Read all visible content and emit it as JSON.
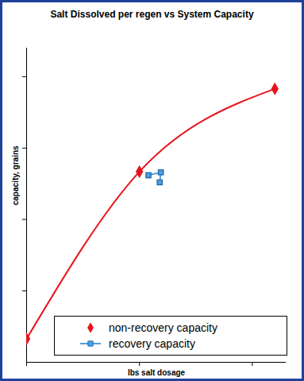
{
  "chart_data": {
    "type": "line",
    "title": "Salt Dissolved per regen vs System Capacity",
    "x_label": "lbs salt dosage",
    "y_label": "capacity, grains",
    "xlim": [
      0,
      2.3
    ],
    "ylim": [
      0,
      4.4
    ],
    "xticks": [
      0,
      1,
      2
    ],
    "yticks": [
      1,
      2,
      3,
      4
    ],
    "tick_labels": false,
    "grid": false,
    "legend": "lower right",
    "series": [
      {
        "name": "non-recovery capacity",
        "color": "#e8141c",
        "marker": "diamond",
        "line_style": "smooth",
        "x": [
          0,
          1,
          2.2
        ],
        "values": [
          0.33,
          2.67,
          3.83
        ]
      },
      {
        "name": "recovery capacity",
        "color": "#4f9fdf",
        "marker": "square",
        "line_style": "solid",
        "x": [
          1.08,
          1.19,
          1.18
        ],
        "values": [
          2.62,
          2.66,
          2.52
        ]
      }
    ]
  }
}
